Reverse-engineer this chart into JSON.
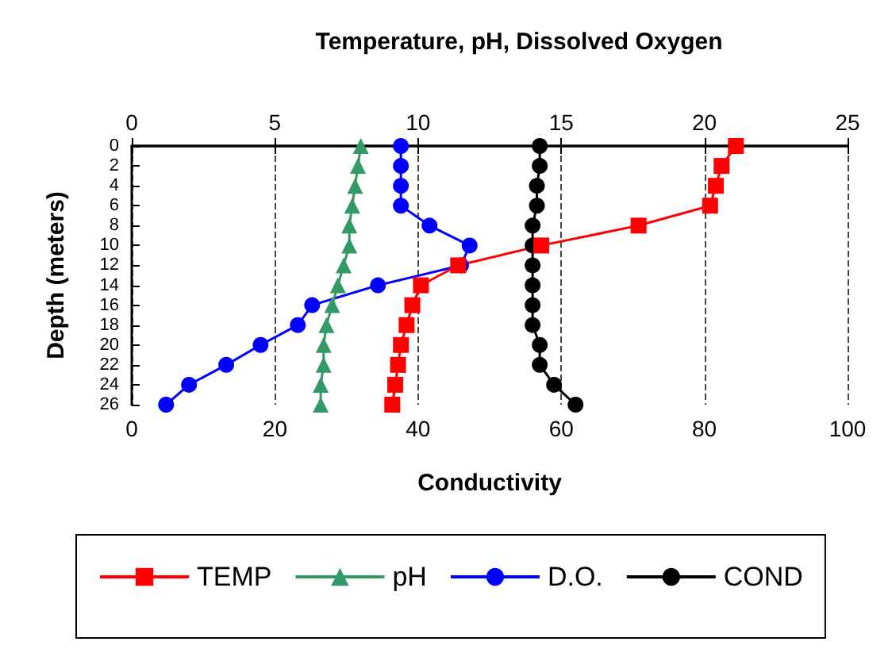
{
  "chart_data": {
    "type": "line",
    "orientation": "horizontal",
    "title": "Temperature, pH, Dissolved Oxygen",
    "xlabel": "Conductivity",
    "ylabel": "Depth (meters)",
    "x": [
      0,
      2,
      4,
      6,
      8,
      10,
      12,
      14,
      16,
      18,
      20,
      22,
      24,
      26
    ],
    "xlim": [
      0,
      100
    ],
    "xticks": [
      0,
      20,
      40,
      60,
      80,
      100
    ],
    "x2lim": [
      0,
      25
    ],
    "x2ticks": [
      0,
      5,
      10,
      15,
      20,
      25
    ],
    "ylim": [
      26,
      0
    ],
    "yticks": [
      0,
      2,
      4,
      6,
      8,
      10,
      12,
      14,
      16,
      18,
      20,
      22,
      24,
      26
    ],
    "grid": "x",
    "legend": "bottom",
    "line_style": "solid",
    "series": [
      {
        "name": "TEMP",
        "color": "#ff0000",
        "marker": "square",
        "axis": "x2",
        "values": [
          21.1,
          20.6,
          20.4,
          20.2,
          17.7,
          14.3,
          11.4,
          10.1,
          9.8,
          9.6,
          9.4,
          9.3,
          9.2,
          9.1
        ]
      },
      {
        "name": "pH",
        "color": "#339966",
        "marker": "triangle",
        "axis": "x2",
        "values": [
          8.0,
          7.9,
          7.8,
          7.7,
          7.6,
          7.6,
          7.4,
          7.2,
          7.0,
          6.8,
          6.7,
          6.7,
          6.6,
          6.6
        ]
      },
      {
        "name": "D.O.",
        "color": "#0000ff",
        "marker": "circle",
        "axis": "x2",
        "values": [
          9.4,
          9.4,
          9.4,
          9.4,
          10.4,
          11.8,
          11.5,
          8.6,
          6.3,
          5.8,
          4.5,
          3.3,
          2.0,
          1.2
        ]
      },
      {
        "name": "COND",
        "color": "#000000",
        "marker": "circle",
        "values": [
          57,
          57,
          56.6,
          56.6,
          56,
          56,
          56,
          56,
          56,
          56,
          57,
          57,
          59,
          62
        ]
      }
    ]
  }
}
